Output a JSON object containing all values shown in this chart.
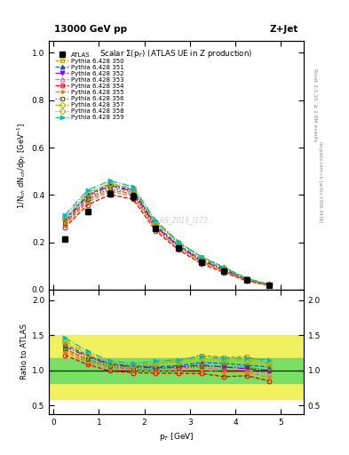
{
  "title_top_left": "13000 GeV pp",
  "title_top_right": "Z+Jet",
  "plot_title": "Scalar Σ(p$_T$) (ATLAS UE in Z production)",
  "ylabel_main": "1/N$_{ch}$ dN$_{ch}$/dp$_T$ [GeV$^{-1}$]",
  "ylabel_ratio": "Ratio to ATLAS",
  "xlabel": "p$_T$ [GeV]",
  "right_label_top": "Rivet 3.1.10, ≥ 2.8M events",
  "right_label_bot": "mcplots.cern.ch [arXiv:1306.3436]",
  "watermark": "ATLAS_2019_I173...",
  "pt_values": [
    0.25,
    0.75,
    1.25,
    1.75,
    2.25,
    2.75,
    3.25,
    3.75,
    4.25,
    4.75
  ],
  "atlas_data": [
    0.215,
    0.33,
    0.405,
    0.395,
    0.258,
    0.175,
    0.115,
    0.08,
    0.04,
    0.02
  ],
  "atlas_errors": [
    0.01,
    0.012,
    0.012,
    0.015,
    0.01,
    0.008,
    0.005,
    0.004,
    0.003,
    0.002
  ],
  "pythia_labels": [
    "Pythia 6.428 350",
    "Pythia 6.428 351",
    "Pythia 6.428 352",
    "Pythia 6.428 353",
    "Pythia 6.428 354",
    "Pythia 6.428 355",
    "Pythia 6.428 356",
    "Pythia 6.428 357",
    "Pythia 6.428 358",
    "Pythia 6.428 359"
  ],
  "pythia_colors": [
    "#b8a000",
    "#0055ff",
    "#8800cc",
    "#ff55aa",
    "#dd0000",
    "#ff7700",
    "#446600",
    "#ccaa00",
    "#99bb00",
    "#00bbbb"
  ],
  "pythia_markers": [
    "s",
    "^",
    "v",
    "^",
    "o",
    "*",
    "s",
    "D",
    "D",
    ">"
  ],
  "pythia_marker_filled": [
    false,
    true,
    true,
    false,
    false,
    true,
    false,
    false,
    false,
    true
  ],
  "pythia_linestyles": [
    "--",
    "--",
    "-.",
    "--",
    "--",
    "--",
    ":",
    "-.",
    ":",
    "-."
  ],
  "pythia_data": [
    [
      0.28,
      0.385,
      0.435,
      0.41,
      0.285,
      0.2,
      0.14,
      0.095,
      0.048,
      0.022
    ],
    [
      0.295,
      0.4,
      0.445,
      0.42,
      0.272,
      0.187,
      0.128,
      0.088,
      0.043,
      0.021
    ],
    [
      0.288,
      0.395,
      0.44,
      0.415,
      0.268,
      0.184,
      0.124,
      0.084,
      0.041,
      0.02
    ],
    [
      0.278,
      0.378,
      0.422,
      0.402,
      0.262,
      0.18,
      0.12,
      0.081,
      0.04,
      0.019
    ],
    [
      0.262,
      0.358,
      0.402,
      0.382,
      0.248,
      0.168,
      0.11,
      0.073,
      0.037,
      0.017
    ],
    [
      0.272,
      0.37,
      0.415,
      0.395,
      0.255,
      0.175,
      0.116,
      0.078,
      0.039,
      0.018
    ],
    [
      0.282,
      0.382,
      0.428,
      0.404,
      0.264,
      0.182,
      0.122,
      0.084,
      0.042,
      0.02
    ],
    [
      0.305,
      0.41,
      0.45,
      0.428,
      0.285,
      0.198,
      0.135,
      0.092,
      0.046,
      0.022
    ],
    [
      0.298,
      0.405,
      0.448,
      0.424,
      0.28,
      0.195,
      0.13,
      0.09,
      0.045,
      0.021
    ],
    [
      0.315,
      0.42,
      0.46,
      0.435,
      0.292,
      0.202,
      0.138,
      0.094,
      0.047,
      0.023
    ]
  ],
  "xlim": [
    -0.1,
    5.5
  ],
  "ylim_main": [
    0.0,
    1.05
  ],
  "yticks_main": [
    0.0,
    0.2,
    0.4,
    0.6,
    0.8,
    1.0
  ],
  "ylim_ratio": [
    0.38,
    2.15
  ],
  "yticks_ratio": [
    0.5,
    1.0,
    1.5,
    2.0
  ],
  "bg_color_green": "#66dd66",
  "bg_color_yellow": "#eeee44",
  "green_band": [
    0.82,
    1.18
  ],
  "yellow_band": [
    0.6,
    1.5
  ]
}
